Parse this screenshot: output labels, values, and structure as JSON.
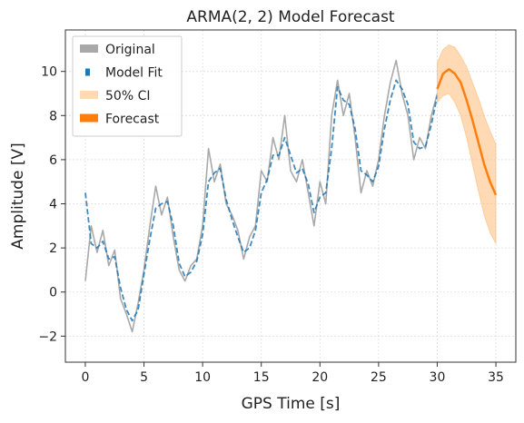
{
  "chart_data": {
    "type": "line",
    "title": "ARMA(2, 2) Model Forecast",
    "xlabel": "GPS Time [s]",
    "ylabel": "Amplitude [V]",
    "xlim": [
      -1.7,
      36.7
    ],
    "ylim": [
      -3.18,
      11.88
    ],
    "xticks": [
      0,
      5,
      10,
      15,
      20,
      25,
      30,
      35
    ],
    "yticks": [
      {
        "value": -2,
        "label": "−2"
      },
      0,
      2,
      4,
      6,
      8,
      10
    ],
    "grid": true,
    "legend": "upper left",
    "series": [
      {
        "name": "Original",
        "color": "#a9a9a9",
        "style": "solid",
        "x": [
          0,
          0.5,
          1,
          1.5,
          2,
          2.5,
          3,
          3.5,
          4,
          4.5,
          5,
          5.5,
          6,
          6.5,
          7,
          7.5,
          8,
          8.5,
          9,
          9.5,
          10,
          10.5,
          11,
          11.5,
          12,
          12.5,
          13,
          13.5,
          14,
          14.5,
          15,
          15.5,
          16,
          16.5,
          17,
          17.5,
          18,
          18.5,
          19,
          19.5,
          20,
          20.5,
          21,
          21.5,
          22,
          22.5,
          23,
          23.5,
          24,
          24.5,
          25,
          25.5,
          26,
          26.5,
          27,
          27.5,
          28,
          28.5,
          29,
          29.5,
          30
        ],
        "values": [
          0.5,
          3.0,
          1.8,
          2.8,
          1.2,
          1.9,
          -0.3,
          -1.0,
          -1.8,
          -0.5,
          1.0,
          3.0,
          4.8,
          3.5,
          4.3,
          2.5,
          1.0,
          0.5,
          1.2,
          1.5,
          3.0,
          6.5,
          5.0,
          5.8,
          4.0,
          3.5,
          2.8,
          1.5,
          2.5,
          3.0,
          5.5,
          5.0,
          7.0,
          6.0,
          8.0,
          5.5,
          5.0,
          6.0,
          4.5,
          3.0,
          5.0,
          4.0,
          8.0,
          9.6,
          8.0,
          9.0,
          7.0,
          4.5,
          5.5,
          4.8,
          6.0,
          8.0,
          9.5,
          10.5,
          9.0,
          8.0,
          6.0,
          7.0,
          6.5,
          8.0,
          9.0
        ]
      },
      {
        "name": "Model Fit",
        "color": "#1f77b4",
        "style": "dashed",
        "x": [
          0,
          0.5,
          1,
          1.5,
          2,
          2.5,
          3,
          3.5,
          4,
          4.5,
          5,
          5.5,
          6,
          6.5,
          7,
          7.5,
          8,
          8.5,
          9,
          9.5,
          10,
          10.5,
          11,
          11.5,
          12,
          12.5,
          13,
          13.5,
          14,
          14.5,
          15,
          15.5,
          16,
          16.5,
          17,
          17.5,
          18,
          18.5,
          19,
          19.5,
          20,
          20.5,
          21,
          21.5,
          22,
          22.5,
          23,
          23.5,
          24,
          24.5,
          25,
          25.5,
          26,
          26.5,
          27,
          27.5,
          28,
          28.5,
          29,
          29.5,
          30
        ],
        "values": [
          4.5,
          2.2,
          2.0,
          2.3,
          1.5,
          1.6,
          0.2,
          -0.8,
          -1.3,
          -0.8,
          0.8,
          2.4,
          3.8,
          4.0,
          4.1,
          3.0,
          1.3,
          0.7,
          0.9,
          1.4,
          2.6,
          5.0,
          5.4,
          5.6,
          4.2,
          3.3,
          2.5,
          1.8,
          2.0,
          2.8,
          4.5,
          5.1,
          6.2,
          6.2,
          7.0,
          6.2,
          5.4,
          5.6,
          4.9,
          3.6,
          4.3,
          4.5,
          6.5,
          9.3,
          8.7,
          8.5,
          7.4,
          5.5,
          5.3,
          5.0,
          5.7,
          7.4,
          8.7,
          9.6,
          9.2,
          8.5,
          6.8,
          6.5,
          6.6,
          7.6,
          8.9
        ]
      },
      {
        "name": "50% CI",
        "color": "#ffbb78",
        "style": "band",
        "x": [
          30,
          30.5,
          31,
          31.5,
          32,
          32.5,
          33,
          33.5,
          34,
          34.5,
          35
        ],
        "lower": [
          8.6,
          8.9,
          9.0,
          8.6,
          8.0,
          7.0,
          5.8,
          4.6,
          3.5,
          2.7,
          2.2
        ],
        "upper": [
          10.4,
          11.0,
          11.2,
          11.1,
          10.7,
          10.2,
          9.5,
          8.8,
          8.0,
          7.3,
          6.7
        ]
      },
      {
        "name": "Forecast",
        "color": "#ff7f0e",
        "style": "solid",
        "x": [
          30,
          30.5,
          31,
          31.5,
          32,
          32.5,
          33,
          33.5,
          34,
          34.5,
          35
        ],
        "values": [
          9.2,
          9.9,
          10.1,
          9.9,
          9.5,
          8.7,
          7.8,
          6.8,
          5.8,
          5.0,
          4.4
        ]
      }
    ]
  }
}
